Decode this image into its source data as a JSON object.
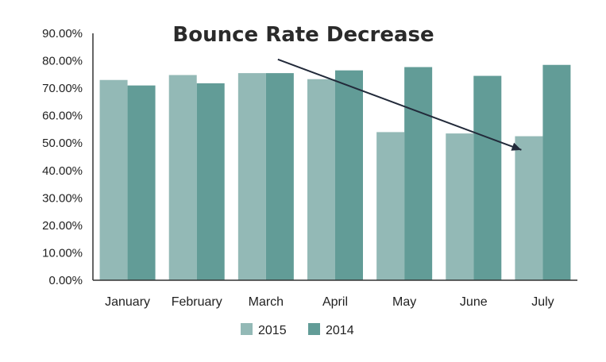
{
  "chart_data": {
    "type": "bar",
    "title": "Bounce Rate Decrease",
    "xlabel": "",
    "ylabel": "",
    "categories": [
      "January",
      "February",
      "March",
      "April",
      "May",
      "June",
      "July"
    ],
    "series": [
      {
        "name": "2015",
        "color": "#93b9b6",
        "values": [
          73.0,
          74.8,
          75.5,
          73.3,
          54.0,
          53.5,
          52.5
        ]
      },
      {
        "name": "2014",
        "color": "#629c97",
        "values": [
          71.0,
          71.8,
          75.5,
          76.5,
          77.7,
          74.5,
          78.5
        ]
      }
    ],
    "ylim": [
      0,
      90
    ],
    "yticks": [
      "0.00%",
      "10.00%",
      "20.00%",
      "30.00%",
      "40.00%",
      "50.00%",
      "60.00%",
      "70.00%",
      "80.00%",
      "90.00%"
    ],
    "grid": false,
    "legend": "bottom",
    "annotation": {
      "type": "arrow",
      "from": {
        "category": "March",
        "value": 80.5
      },
      "to": {
        "category": "July",
        "value": 47.5
      }
    }
  }
}
